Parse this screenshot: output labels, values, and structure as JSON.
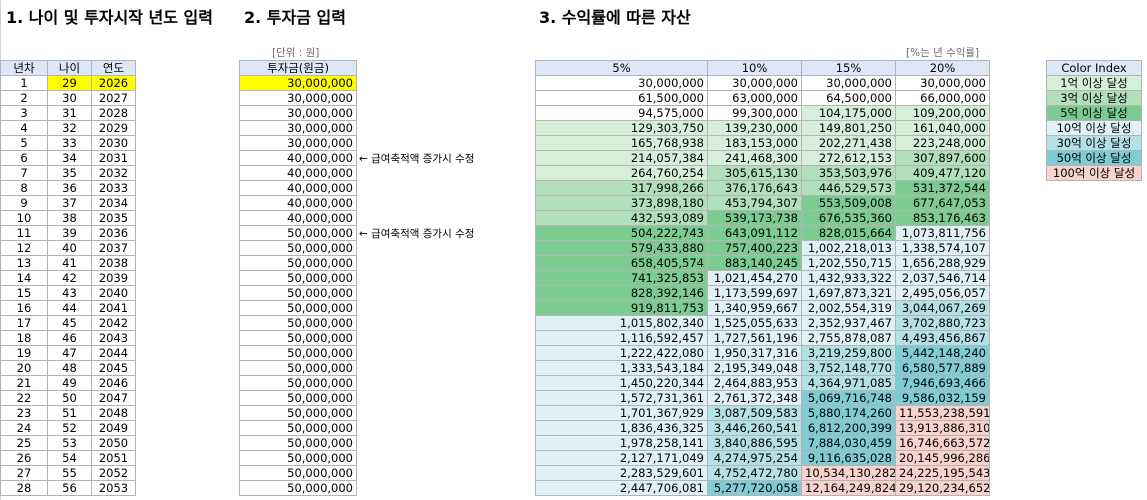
{
  "headings": {
    "h1": "1. 나이 및 투자시작 년도 입력",
    "h2": "2. 투자금 입력",
    "h3": "3. 수익률에 따른 자산"
  },
  "notes": {
    "unit": "[단위 : 원]",
    "rate_unit": "[%는 년 수익률]"
  },
  "side_notes": [
    "← 급여축적액 증가시 수정",
    "← 급여축적액 증가시 수정"
  ],
  "table1": {
    "headers": [
      "년차",
      "나이",
      "연도"
    ],
    "rows": [
      [
        "1",
        "29",
        "2026"
      ],
      [
        "2",
        "30",
        "2027"
      ],
      [
        "3",
        "31",
        "2028"
      ],
      [
        "4",
        "32",
        "2029"
      ],
      [
        "5",
        "33",
        "2030"
      ],
      [
        "6",
        "34",
        "2031"
      ],
      [
        "7",
        "35",
        "2032"
      ],
      [
        "8",
        "36",
        "2033"
      ],
      [
        "9",
        "37",
        "2034"
      ],
      [
        "10",
        "38",
        "2035"
      ],
      [
        "11",
        "39",
        "2036"
      ],
      [
        "12",
        "40",
        "2037"
      ],
      [
        "13",
        "41",
        "2038"
      ],
      [
        "14",
        "42",
        "2039"
      ],
      [
        "15",
        "43",
        "2040"
      ],
      [
        "16",
        "44",
        "2041"
      ],
      [
        "17",
        "45",
        "2042"
      ],
      [
        "18",
        "46",
        "2043"
      ],
      [
        "19",
        "47",
        "2044"
      ],
      [
        "20",
        "48",
        "2045"
      ],
      [
        "21",
        "49",
        "2046"
      ],
      [
        "22",
        "50",
        "2047"
      ],
      [
        "23",
        "51",
        "2048"
      ],
      [
        "24",
        "52",
        "2049"
      ],
      [
        "25",
        "53",
        "2050"
      ],
      [
        "26",
        "54",
        "2051"
      ],
      [
        "27",
        "55",
        "2052"
      ],
      [
        "28",
        "56",
        "2053"
      ]
    ]
  },
  "table2": {
    "header": "투자금(원금)",
    "values": [
      "30,000,000",
      "30,000,000",
      "30,000,000",
      "30,000,000",
      "30,000,000",
      "40,000,000",
      "40,000,000",
      "40,000,000",
      "40,000,000",
      "40,000,000",
      "50,000,000",
      "50,000,000",
      "50,000,000",
      "50,000,000",
      "50,000,000",
      "50,000,000",
      "50,000,000",
      "50,000,000",
      "50,000,000",
      "50,000,000",
      "50,000,000",
      "50,000,000",
      "50,000,000",
      "50,000,000",
      "50,000,000",
      "50,000,000",
      "50,000,000",
      "50,000,000"
    ]
  },
  "table3": {
    "headers": [
      "5%",
      "10%",
      "15%",
      "20%"
    ],
    "rows": [
      [
        "30,000,000",
        "30,000,000",
        "30,000,000",
        "30,000,000"
      ],
      [
        "61,500,000",
        "63,000,000",
        "64,500,000",
        "66,000,000"
      ],
      [
        "94,575,000",
        "99,300,000",
        "104,175,000",
        "109,200,000"
      ],
      [
        "129,303,750",
        "139,230,000",
        "149,801,250",
        "161,040,000"
      ],
      [
        "165,768,938",
        "183,153,000",
        "202,271,438",
        "223,248,000"
      ],
      [
        "214,057,384",
        "241,468,300",
        "272,612,153",
        "307,897,600"
      ],
      [
        "264,760,254",
        "305,615,130",
        "353,503,976",
        "409,477,120"
      ],
      [
        "317,998,266",
        "376,176,643",
        "446,529,573",
        "531,372,544"
      ],
      [
        "373,898,180",
        "453,794,307",
        "553,509,008",
        "677,647,053"
      ],
      [
        "432,593,089",
        "539,173,738",
        "676,535,360",
        "853,176,463"
      ],
      [
        "504,222,743",
        "643,091,112",
        "828,015,664",
        "1,073,811,756"
      ],
      [
        "579,433,880",
        "757,400,223",
        "1,002,218,013",
        "1,338,574,107"
      ],
      [
        "658,405,574",
        "883,140,245",
        "1,202,550,715",
        "1,656,288,929"
      ],
      [
        "741,325,853",
        "1,021,454,270",
        "1,432,933,322",
        "2,037,546,714"
      ],
      [
        "828,392,146",
        "1,173,599,697",
        "1,697,873,321",
        "2,495,056,057"
      ],
      [
        "919,811,753",
        "1,340,959,667",
        "2,002,554,319",
        "3,044,067,269"
      ],
      [
        "1,015,802,340",
        "1,525,055,633",
        "2,352,937,467",
        "3,702,880,723"
      ],
      [
        "1,116,592,457",
        "1,727,561,196",
        "2,755,878,087",
        "4,493,456,867"
      ],
      [
        "1,222,422,080",
        "1,950,317,316",
        "3,219,259,800",
        "5,442,148,240"
      ],
      [
        "1,333,543,184",
        "2,195,349,048",
        "3,752,148,770",
        "6,580,577,889"
      ],
      [
        "1,450,220,344",
        "2,464,883,953",
        "4,364,971,085",
        "7,946,693,466"
      ],
      [
        "1,572,731,361",
        "2,761,372,348",
        "5,069,716,748",
        "9,586,032,159"
      ],
      [
        "1,701,367,929",
        "3,087,509,583",
        "5,880,174,260",
        "11,553,238,591"
      ],
      [
        "1,836,436,325",
        "3,446,260,541",
        "6,812,200,399",
        "13,913,886,310"
      ],
      [
        "1,978,258,141",
        "3,840,886,595",
        "7,884,030,459",
        "16,746,663,572"
      ],
      [
        "2,127,171,049",
        "4,274,975,254",
        "9,116,635,028",
        "20,145,996,286"
      ],
      [
        "2,283,529,601",
        "4,752,472,780",
        "10,534,130,282",
        "24,225,195,543"
      ],
      [
        "2,447,706,081",
        "5,277,720,058",
        "12,164,249,824",
        "29,120,234,652"
      ]
    ]
  },
  "color_index": {
    "header": "Color Index",
    "items": [
      {
        "label": "1억 이상 달성",
        "color": "#d6efdb"
      },
      {
        "label": "3억 이상 달성",
        "color": "#b0dfba"
      },
      {
        "label": "5억 이상 달성",
        "color": "#7ccc91"
      },
      {
        "label": "10억 이상 달성",
        "color": "#dff1f4"
      },
      {
        "label": "30억 이상 달성",
        "color": "#b4e0e6"
      },
      {
        "label": "50억 이상 달성",
        "color": "#7fcbd6"
      },
      {
        "label": "100억 이상 달성",
        "color": "#f8d2cc"
      }
    ]
  },
  "colors": {
    "header_bg": "#dde7f7",
    "input_highlight": "#ffff00"
  }
}
